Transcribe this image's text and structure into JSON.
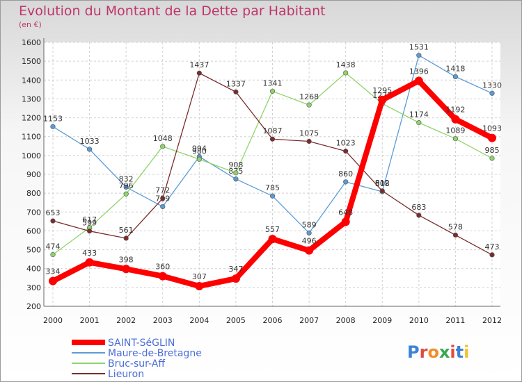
{
  "title": "Evolution du Montant de la Dette par Habitant",
  "subtitle": "(en €)",
  "brand": "Proxiti",
  "chart_data": {
    "type": "line",
    "title": "Evolution du Montant de la Dette par Habitant",
    "subtitle": "(en €)",
    "x": [
      2000,
      2001,
      2002,
      2003,
      2004,
      2005,
      2006,
      2007,
      2008,
      2009,
      2010,
      2011,
      2012
    ],
    "ylim": [
      200,
      1600
    ],
    "yticks": [
      200,
      300,
      400,
      500,
      600,
      700,
      800,
      900,
      1000,
      1100,
      1200,
      1300,
      1400,
      1500,
      1600
    ],
    "grid": true,
    "legend": "bottom-left",
    "series": [
      {
        "name": "SAINT-SéGLIN",
        "color": "#ff0000",
        "values": [
          334,
          433,
          398,
          360,
          307,
          347,
          557,
          496,
          648,
          1295,
          1396,
          1192,
          1093
        ]
      },
      {
        "name": "Maure-de-Bretagne",
        "color": "#5b9bd5",
        "values": [
          1153,
          1033,
          832,
          729,
          994,
          875,
          785,
          589,
          860,
          808,
          1531,
          1418,
          1330
        ]
      },
      {
        "name": "Bruc-sur-Aff",
        "color": "#8fd46a",
        "values": [
          474,
          617,
          796,
          1048,
          980,
          908,
          1341,
          1268,
          1438,
          1275,
          1174,
          1089,
          985
        ]
      },
      {
        "name": "Lieuron",
        "color": "#7b2c2c",
        "values": [
          653,
          599,
          561,
          772,
          1437,
          1337,
          1087,
          1075,
          1023,
          812,
          683,
          578,
          473
        ]
      }
    ]
  }
}
